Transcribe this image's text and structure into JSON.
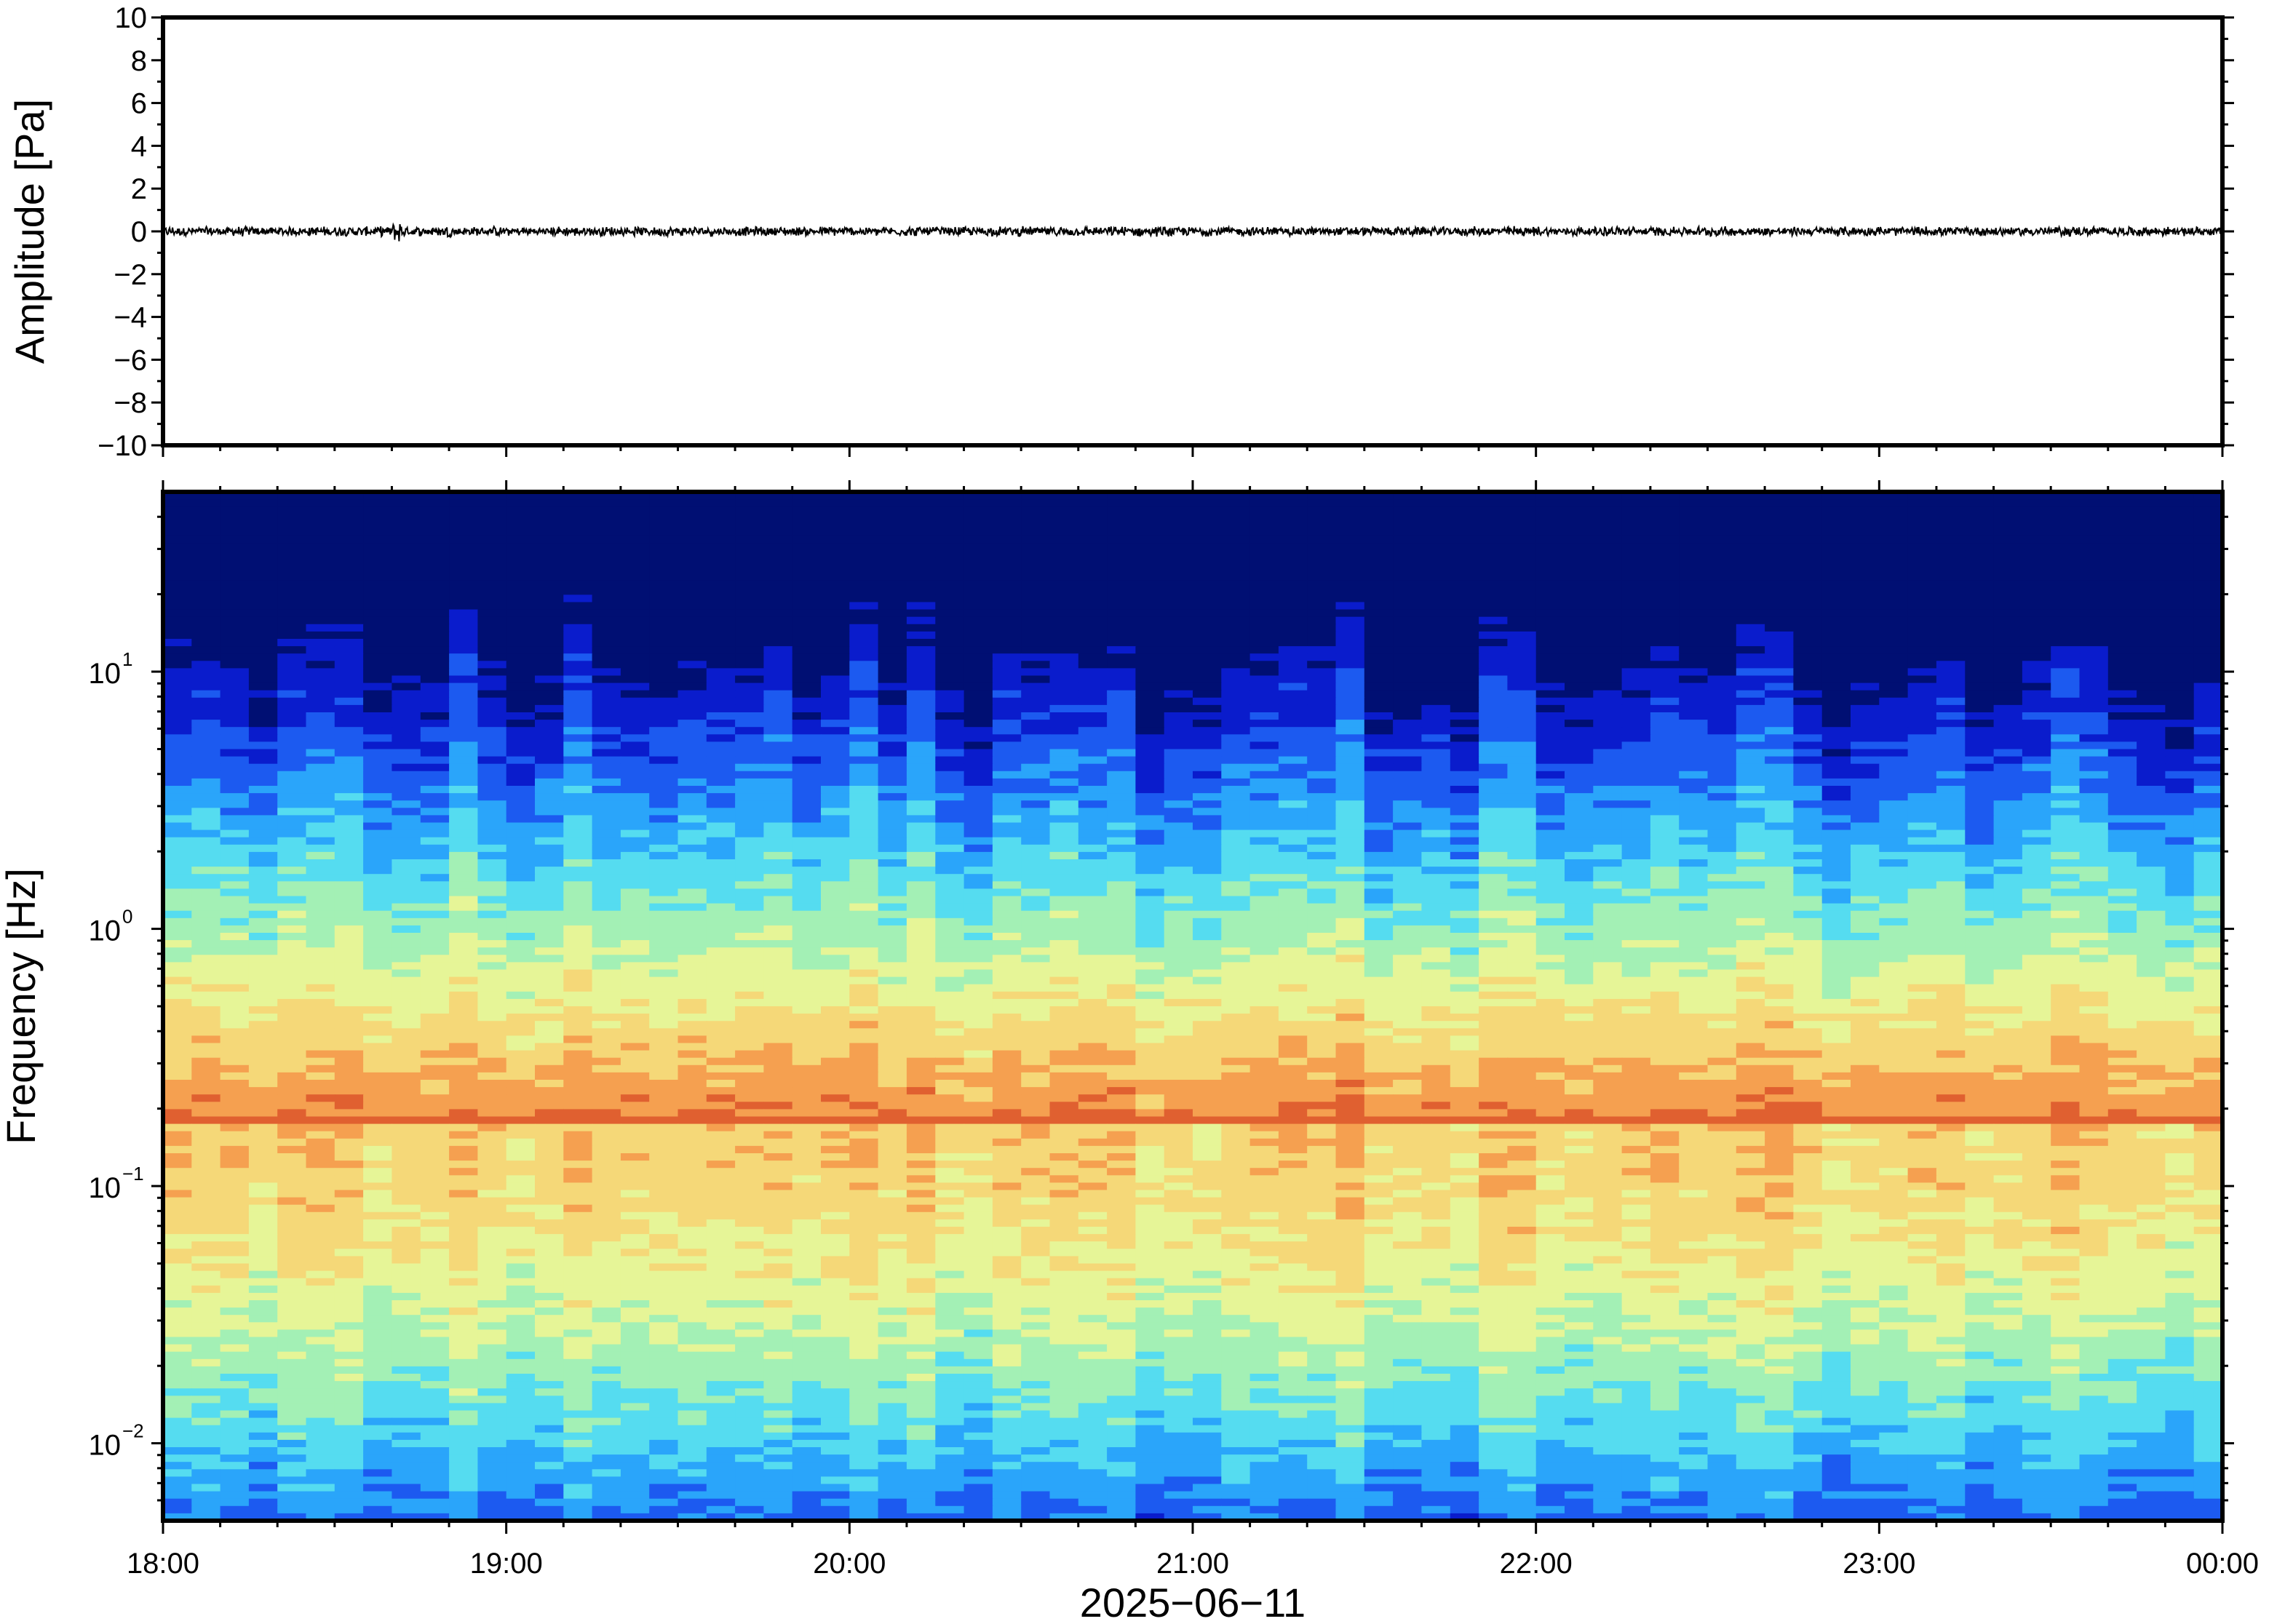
{
  "chart_data": [
    {
      "type": "line",
      "panel": "waveform",
      "ylabel": "Amplitude [Pa]",
      "ylim": [
        -10,
        10
      ],
      "yticks": [
        10,
        8,
        6,
        4,
        2,
        0,
        -2,
        -4,
        -6,
        -8,
        -10
      ],
      "ytick_labels": [
        "10",
        "8",
        "6",
        "4",
        "2",
        "0",
        "−2",
        "−4",
        "−6",
        "−8",
        "−10"
      ],
      "series": [
        {
          "color": "#000000",
          "baseline": 0,
          "typical_peak_amplitude": 0.25,
          "bursts": [
            {
              "time": "18:41",
              "peak_amplitude": 0.6
            },
            {
              "time": "18:50",
              "peak_amplitude": 0.3
            },
            {
              "time": "21:56",
              "peak_amplitude": 0.3
            }
          ]
        }
      ]
    },
    {
      "type": "heatmap",
      "panel": "spectrogram",
      "ylabel": "Frequency [Hz]",
      "yscale": "log",
      "ylim": [
        0.005,
        50
      ],
      "yticks": [
        {
          "value": 10,
          "base": "10",
          "exp": "1"
        },
        {
          "value": 1,
          "base": "10",
          "exp": "0"
        },
        {
          "value": 0.1,
          "base": "10",
          "exp": "−1"
        },
        {
          "value": 0.01,
          "base": "10",
          "exp": "−2"
        }
      ],
      "colormap": [
        "#000f73",
        "#0a1ccc",
        "#1c5af0",
        "#2aa5fa",
        "#55dcf0",
        "#a3f0b5",
        "#e6f597",
        "#f5d878",
        "#f5a050",
        "#e06030"
      ],
      "dominant_band_hz": 0.17,
      "columns": 72
    }
  ],
  "xaxis": {
    "xlabel": "2025−06−11",
    "xlim": [
      "18:00",
      "24:00"
    ],
    "xticks": [
      {
        "time": "18:00",
        "label": "18:00"
      },
      {
        "time": "19:00",
        "label": "19:00"
      },
      {
        "time": "20:00",
        "label": "20:00"
      },
      {
        "time": "21:00",
        "label": "21:00"
      },
      {
        "time": "22:00",
        "label": "22:00"
      },
      {
        "time": "23:00",
        "label": "23:00"
      },
      {
        "time": "24:00",
        "label": "00:00"
      }
    ],
    "minor_tick_minutes": 10
  }
}
